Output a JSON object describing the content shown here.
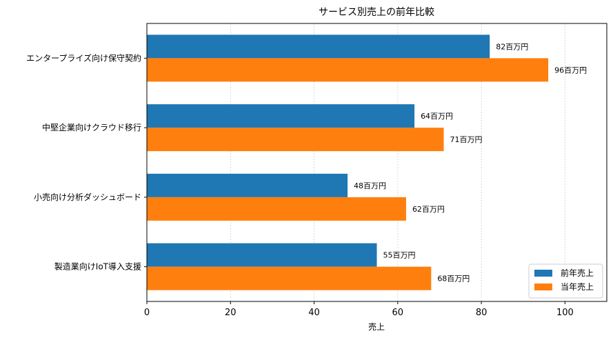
{
  "chart_data": {
    "type": "bar",
    "orientation": "horizontal",
    "title": "サービス別売上の前年比較",
    "xlabel": "売上",
    "ylabel": "",
    "categories": [
      "エンタープライズ向け保守契約",
      "中堅企業向けクラウド移行",
      "小売向け分析ダッシュボード",
      "製造業向けIoT導入支援"
    ],
    "series": [
      {
        "name": "前年売上",
        "color": "#1f77b4",
        "values": [
          82,
          64,
          48,
          55
        ],
        "labels": [
          "82百万円",
          "64百万円",
          "48百万円",
          "55百万円"
        ]
      },
      {
        "name": "当年売上",
        "color": "#ff7f0e",
        "values": [
          96,
          71,
          62,
          68
        ],
        "labels": [
          "96百万円",
          "71百万円",
          "62百万円",
          "68百万円"
        ]
      }
    ],
    "xlim": [
      0,
      110
    ],
    "xticks": [
      0,
      20,
      40,
      60,
      80,
      100
    ],
    "xtick_labels": [
      "0",
      "20",
      "40",
      "60",
      "80",
      "100"
    ],
    "grid": "x-dotted",
    "legend_position": "bottom-right"
  }
}
